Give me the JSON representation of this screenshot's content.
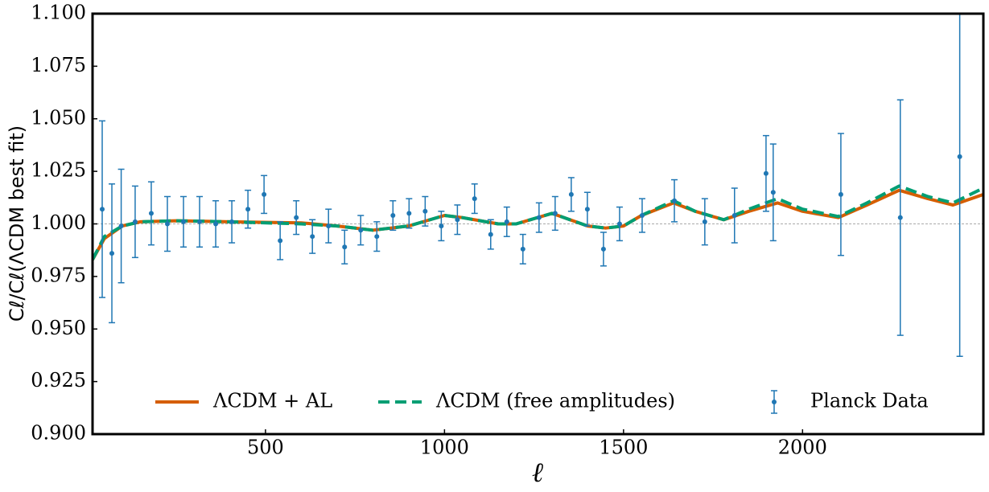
{
  "chart_data": {
    "type": "line",
    "x_label": "ℓ",
    "y_label": "Cℓ/Cℓ(ΛCDM best fit)",
    "xlim": [
      17,
      2505
    ],
    "ylim": [
      0.9,
      1.1
    ],
    "xticks": [
      500,
      1000,
      1500,
      2000
    ],
    "yticks": [
      {
        "value": 0.9,
        "label": "0.900"
      },
      0.925,
      {
        "value": 0.95,
        "label": "0.950"
      },
      0.975,
      {
        "value": 1.0,
        "label": "1.000"
      },
      1.025,
      {
        "value": 1.05,
        "label": "1.050"
      },
      1.075,
      {
        "value": 1.1,
        "label": "1.100"
      }
    ],
    "reference_line": 1,
    "legend": "lower center",
    "series": [
      {
        "name": "ΛCDM + AL",
        "color": "#d55e00",
        "style": "solid",
        "x": [
          17,
          50,
          100,
          150,
          250,
          400,
          600,
          700,
          800,
          900,
          1000,
          1050,
          1150,
          1200,
          1300,
          1400,
          1450,
          1500,
          1550,
          1640,
          1700,
          1780,
          1850,
          1930,
          2000,
          2100,
          2180,
          2270,
          2350,
          2420,
          2505
        ],
        "values": [
          0.983,
          0.993,
          0.999,
          1.001,
          1.0015,
          1.001,
          1.0005,
          0.999,
          0.997,
          0.999,
          1.004,
          1.003,
          1.0,
          1.0,
          1.005,
          0.999,
          0.998,
          0.999,
          1.004,
          1.01,
          1.006,
          1.002,
          1.006,
          1.01,
          1.006,
          1.003,
          1.009,
          1.016,
          1.012,
          1.009,
          1.014
        ]
      },
      {
        "name": "ΛCDM (free amplitudes)",
        "color": "#009e73",
        "style": "dashed",
        "x": [
          17,
          50,
          100,
          150,
          250,
          400,
          600,
          700,
          800,
          900,
          1000,
          1050,
          1150,
          1200,
          1300,
          1400,
          1450,
          1500,
          1550,
          1640,
          1700,
          1780,
          1850,
          1930,
          2000,
          2100,
          2180,
          2270,
          2350,
          2420,
          2505
        ],
        "values": [
          0.983,
          0.994,
          0.999,
          1.001,
          1.0015,
          1.001,
          1.0,
          0.999,
          0.997,
          0.999,
          1.004,
          1.003,
          1.0,
          1.0,
          1.005,
          0.999,
          0.998,
          0.999,
          1.004,
          1.011,
          1.006,
          1.002,
          1.007,
          1.012,
          1.007,
          1.0035,
          1.01,
          1.018,
          1.013,
          1.01,
          1.017
        ]
      },
      {
        "name": "Planck Data",
        "color": "#1f77b4",
        "style": "errorbar",
        "x": [
          44,
          71,
          97,
          136,
          181,
          226,
          271,
          316,
          361,
          406,
          451,
          496,
          541,
          586,
          631,
          676,
          721,
          766,
          811,
          856,
          901,
          946,
          991,
          1036,
          1084,
          1129,
          1174,
          1219,
          1264,
          1309,
          1354,
          1399,
          1444,
          1489,
          1552,
          1642,
          1727,
          1810,
          1898,
          1918,
          2107,
          2273,
          2439
        ],
        "values": [
          1.007,
          0.986,
          0.999,
          1.001,
          1.005,
          1.0,
          1.001,
          1.001,
          1.0,
          1.001,
          1.007,
          1.014,
          0.992,
          1.003,
          0.994,
          0.999,
          0.989,
          0.997,
          0.994,
          1.004,
          1.005,
          1.006,
          0.999,
          1.002,
          1.012,
          0.995,
          1.001,
          0.988,
          1.003,
          1.005,
          1.014,
          1.007,
          0.988,
          1.0,
          1.004,
          1.011,
          1.001,
          1.004,
          1.024,
          1.015,
          1.014,
          1.003,
          1.032
        ],
        "errors": [
          0.042,
          0.033,
          0.027,
          0.017,
          0.015,
          0.013,
          0.012,
          0.012,
          0.011,
          0.01,
          0.009,
          0.009,
          0.009,
          0.008,
          0.008,
          0.008,
          0.008,
          0.007,
          0.007,
          0.007,
          0.007,
          0.007,
          0.007,
          0.007,
          0.007,
          0.007,
          0.007,
          0.007,
          0.007,
          0.008,
          0.008,
          0.008,
          0.008,
          0.008,
          0.008,
          0.01,
          0.011,
          0.013,
          0.018,
          0.023,
          0.029,
          0.056,
          0.095
        ]
      }
    ]
  }
}
